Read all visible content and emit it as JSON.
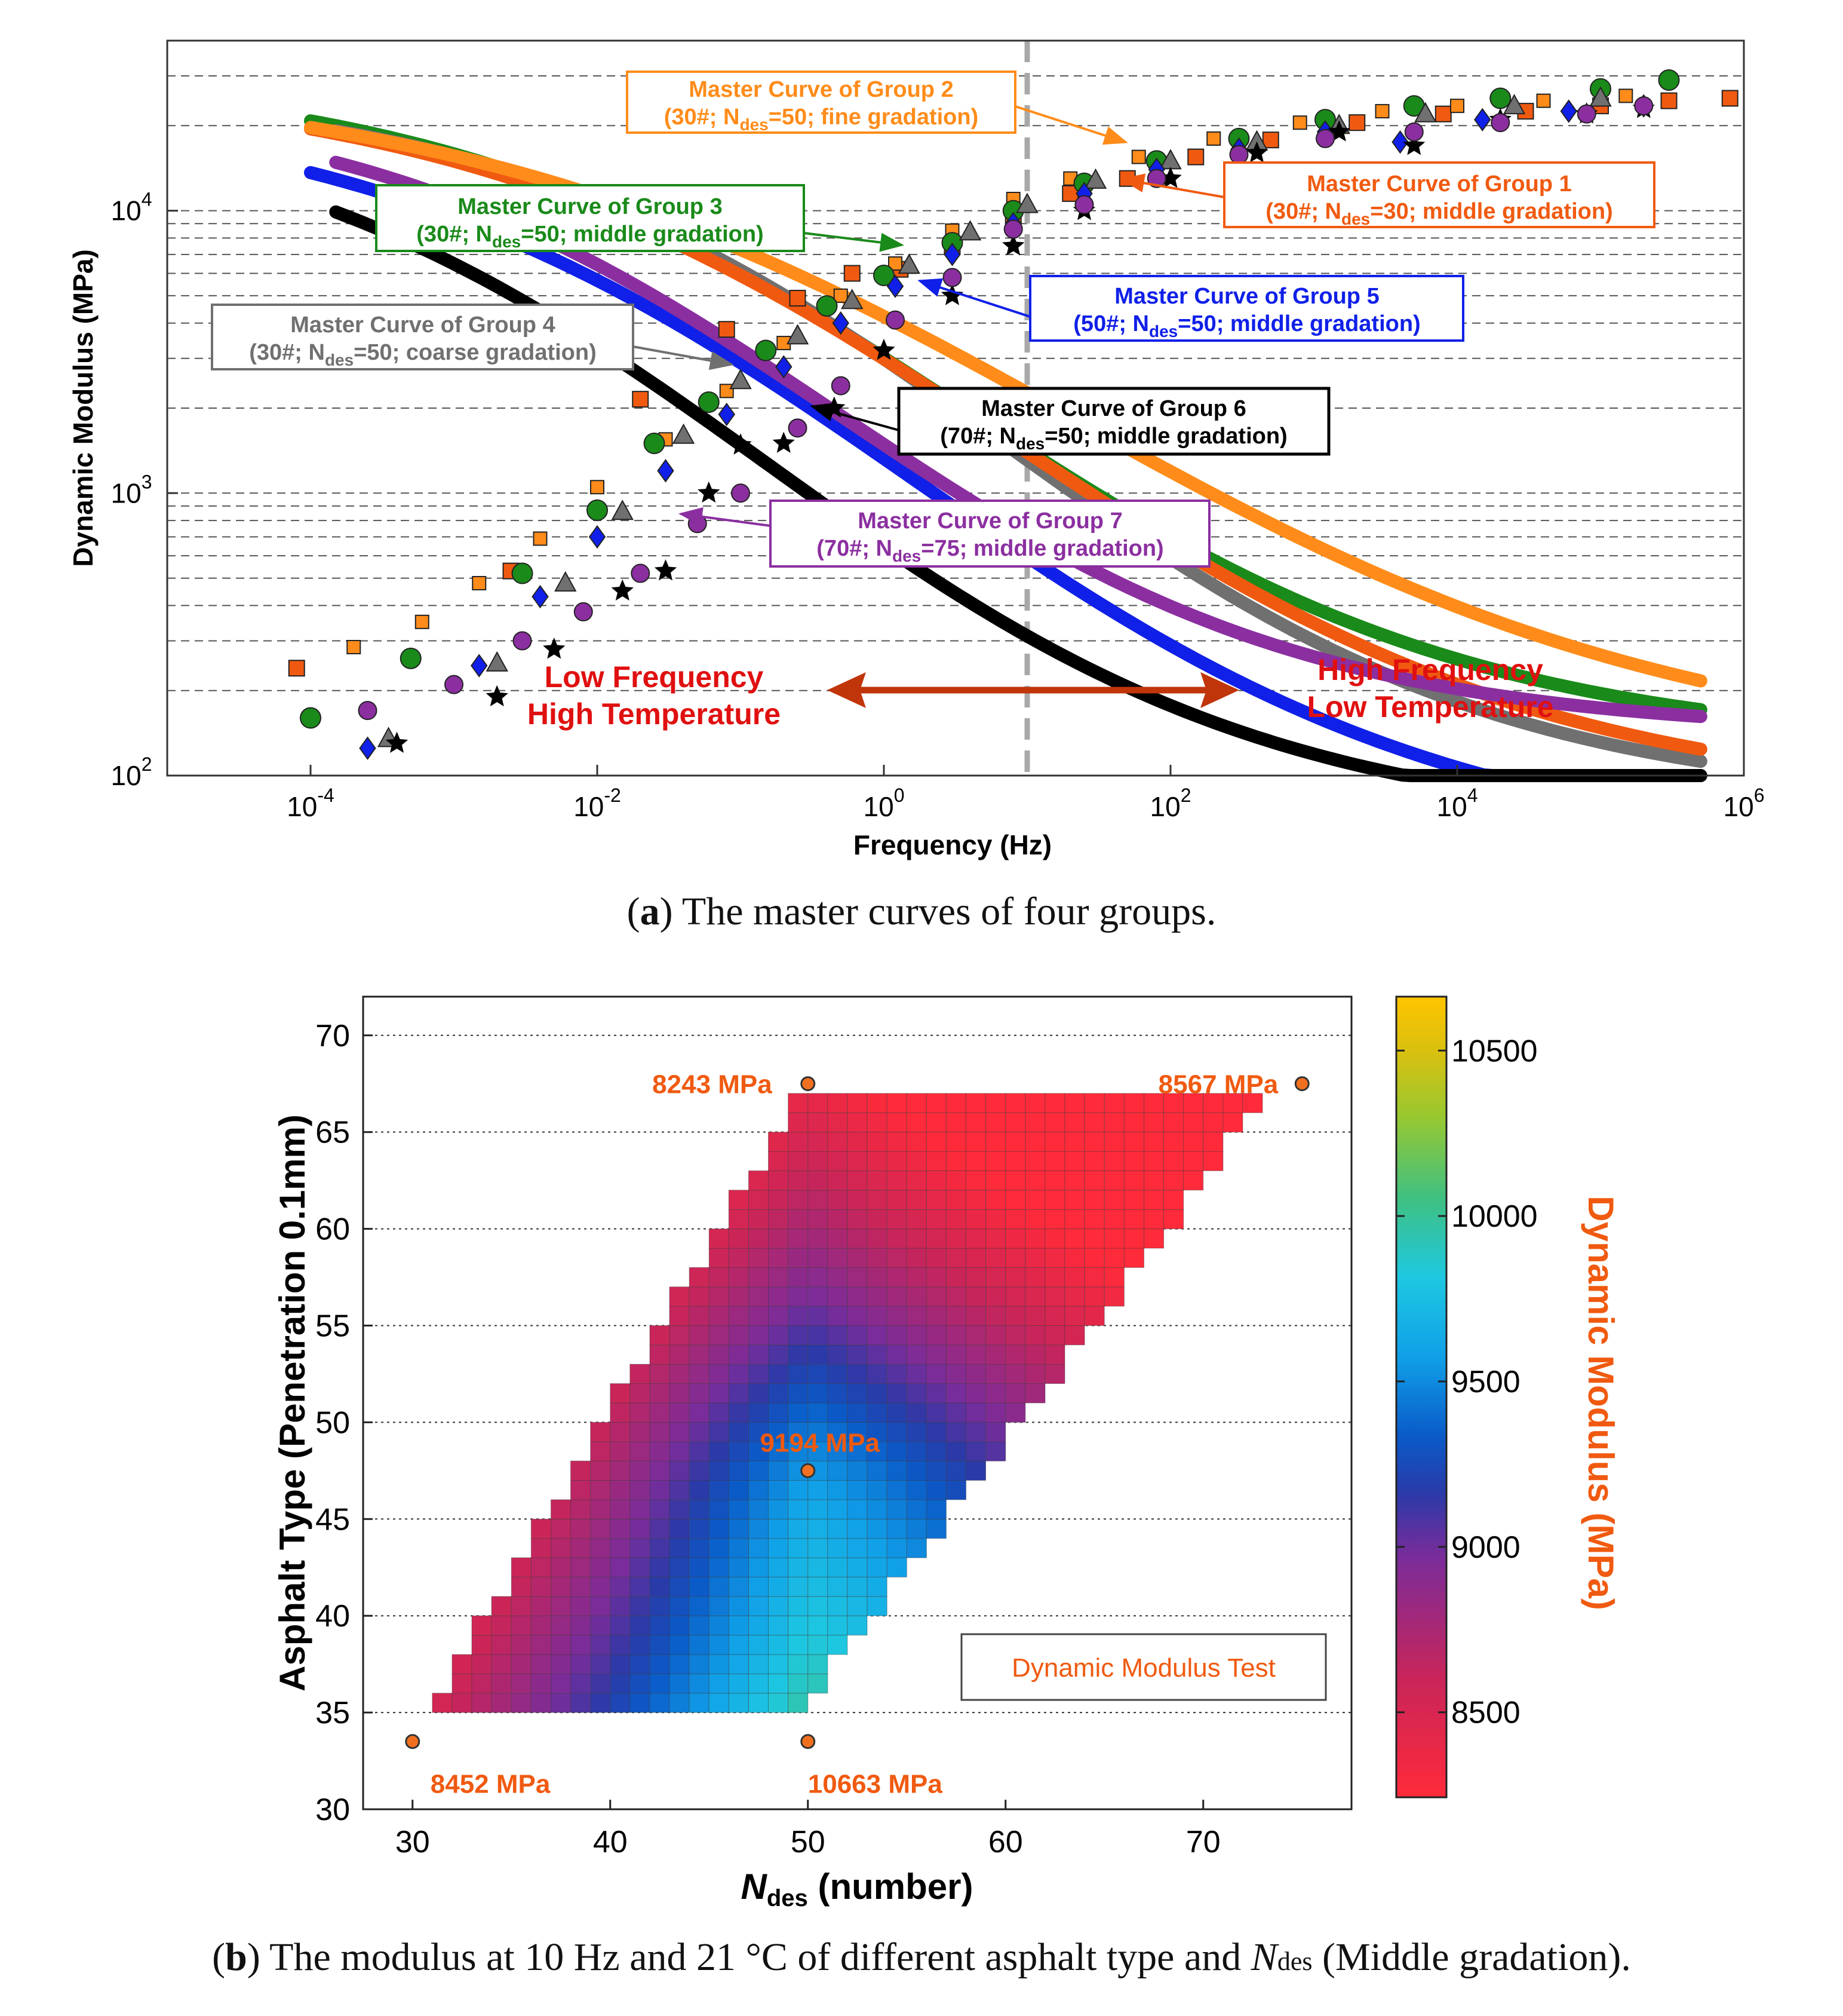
{
  "colors": {
    "g1": "#f05a10",
    "g2": "#ff8c1a",
    "g3": "#1a8a1a",
    "g4": "#707070",
    "g5": "#1020e8",
    "g6": "#000000",
    "g7": "#8b2fa0",
    "red_text": "#e01010",
    "arrow": "#c0350a",
    "annot": "#f05a10"
  },
  "captions": {
    "a_letter": "a",
    "a_text": " The master curves of four groups.",
    "b_letter": "b",
    "b_text_1": " The modulus at 10 Hz and 21 °C of different asphalt type and ",
    "b_n": "N",
    "b_sub": "des",
    "b_text_2": " (Middle gradation)."
  },
  "chart_data": [
    {
      "type": "line",
      "title": "",
      "xlabel": "Frequency (Hz)",
      "ylabel": "Dynamic Modulus (MPa)",
      "xscale": "log",
      "yscale": "log",
      "xlim": [
        1e-05,
        1000000
      ],
      "ylim": [
        100,
        40000
      ],
      "xtick_values": [
        0.0001,
        0.01,
        1,
        100,
        10000,
        1000000
      ],
      "xticks": [
        {
          "base": "10",
          "exp": "-4"
        },
        {
          "base": "10",
          "exp": "-2"
        },
        {
          "base": "10",
          "exp": "0"
        },
        {
          "base": "10",
          "exp": "2"
        },
        {
          "base": "10",
          "exp": "4"
        },
        {
          "base": "10",
          "exp": "6"
        }
      ],
      "ytick_values": [
        100,
        1000,
        10000
      ],
      "yticks": [
        {
          "base": "10",
          "exp": "2"
        },
        {
          "base": "10",
          "exp": "3"
        },
        {
          "base": "10",
          "exp": "4"
        }
      ],
      "grid_y": [
        200,
        300,
        400,
        500,
        600,
        700,
        800,
        900,
        1000,
        2000,
        3000,
        4000,
        5000,
        6000,
        7000,
        8000,
        9000,
        10000,
        20000,
        30000
      ],
      "reference_line": {
        "x": 10,
        "style": "dashed"
      },
      "region_labels": {
        "low": [
          "Low Frequency",
          "High Temperature"
        ],
        "high": [
          "High Frequency",
          "Low Temperature"
        ]
      },
      "series": [
        {
          "id": "g1",
          "label": [
            "Master Curve of Group 1",
            "(30#; N",
            "des",
            "=30; middle gradation)"
          ],
          "sigmoid": {
            "d": 1.9,
            "a": 2.58,
            "b": -0.45,
            "g": 0.52
          },
          "xrange": [
            0.0001,
            500000
          ],
          "marker": "square",
          "points": [
            [
              8e-05,
              240
            ],
            [
              0.0025,
              530
            ],
            [
              0.02,
              2150
            ],
            [
              0.08,
              3800
            ],
            [
              0.25,
              4900
            ],
            [
              0.6,
              6000
            ],
            [
              1.3,
              6200
            ],
            [
              3,
              7500
            ],
            [
              8,
              9500
            ],
            [
              20,
              11500
            ],
            [
              50,
              13000
            ],
            [
              150,
              15500
            ],
            [
              500,
              17800
            ],
            [
              2000,
              20500
            ],
            [
              8000,
              22000
            ],
            [
              30000,
              22500
            ],
            [
              100000,
              23500
            ],
            [
              300000,
              24500
            ],
            [
              800000,
              25000
            ]
          ]
        },
        {
          "id": "g2",
          "label": [
            "Master Curve of Group 2",
            "(30#; N",
            "des",
            "=50; fine gradation)"
          ],
          "sigmoid": {
            "d": 2.05,
            "a": 2.44,
            "b": -0.6,
            "g": 0.46
          },
          "xrange": [
            0.0001,
            500000
          ],
          "marker": "square-small",
          "points": [
            [
              0.0002,
              285
            ],
            [
              0.0006,
              350
            ],
            [
              0.0015,
              480
            ],
            [
              0.004,
              690
            ],
            [
              0.01,
              1050
            ],
            [
              0.03,
              1550
            ],
            [
              0.08,
              2300
            ],
            [
              0.2,
              3400
            ],
            [
              0.5,
              5000
            ],
            [
              1.2,
              6500
            ],
            [
              3,
              8500
            ],
            [
              8,
              11000
            ],
            [
              20,
              13000
            ],
            [
              60,
              15500
            ],
            [
              200,
              18000
            ],
            [
              800,
              20500
            ],
            [
              3000,
              22500
            ],
            [
              10000,
              23500
            ],
            [
              40000,
              24500
            ],
            [
              150000,
              25500
            ]
          ]
        },
        {
          "id": "g3",
          "label": [
            "Master Curve of Group 3",
            "(30#; N",
            "des",
            "=50; middle gradation)"
          ],
          "sigmoid": {
            "d": 2.1,
            "a": 2.4,
            "b": -0.3,
            "g": 0.55
          },
          "xrange": [
            0.0001,
            500000
          ],
          "marker": "circle",
          "points": [
            [
              0.0001,
              160
            ],
            [
              0.0005,
              260
            ],
            [
              0.003,
              520
            ],
            [
              0.01,
              870
            ],
            [
              0.025,
              1500
            ],
            [
              0.06,
              2100
            ],
            [
              0.15,
              3200
            ],
            [
              0.4,
              4600
            ],
            [
              1,
              5900
            ],
            [
              3,
              7700
            ],
            [
              8,
              10000
            ],
            [
              25,
              12500
            ],
            [
              80,
              15000
            ],
            [
              300,
              18000
            ],
            [
              1200,
              21000
            ],
            [
              5000,
              23500
            ],
            [
              20000,
              25000
            ],
            [
              100000,
              27000
            ],
            [
              300000,
              29000
            ]
          ]
        },
        {
          "id": "g4",
          "label": [
            "Master Curve of Group 4",
            "(30#; N",
            "des",
            "=50; coarse gradation)"
          ],
          "sigmoid": {
            "d": 1.9,
            "a": 2.55,
            "b": -0.48,
            "g": 0.57
          },
          "xrange": [
            0.00015,
            500000
          ],
          "marker": "triangle",
          "points": [
            [
              0.00035,
              135
            ],
            [
              0.002,
              250
            ],
            [
              0.006,
              480
            ],
            [
              0.015,
              860
            ],
            [
              0.04,
              1600
            ],
            [
              0.1,
              2500
            ],
            [
              0.25,
              3600
            ],
            [
              0.6,
              4800
            ],
            [
              1.5,
              6400
            ],
            [
              4,
              8400
            ],
            [
              10,
              10500
            ],
            [
              30,
              12800
            ],
            [
              100,
              15000
            ],
            [
              400,
              17500
            ],
            [
              1500,
              20000
            ],
            [
              6000,
              22000
            ],
            [
              25000,
              23500
            ],
            [
              100000,
              25000
            ]
          ]
        },
        {
          "id": "g5",
          "label": [
            "Master Curve of Group 5",
            "(50#; N",
            "des",
            "=50; middle gradation)"
          ],
          "sigmoid": {
            "d": 1.7,
            "a": 2.71,
            "b": -0.1,
            "g": 0.52
          },
          "xrange": [
            0.0001,
            500000
          ],
          "marker": "diamond",
          "points": [
            [
              0.00025,
              125
            ],
            [
              0.0015,
              245
            ],
            [
              0.004,
              430
            ],
            [
              0.01,
              700
            ],
            [
              0.03,
              1200
            ],
            [
              0.08,
              1900
            ],
            [
              0.2,
              2800
            ],
            [
              0.5,
              4000
            ],
            [
              1.2,
              5400
            ],
            [
              3,
              7000
            ],
            [
              8,
              9000
            ],
            [
              25,
              11500
            ],
            [
              80,
              14000
            ],
            [
              300,
              16500
            ],
            [
              1200,
              19000
            ],
            [
              4000,
              17500
            ],
            [
              15000,
              21000
            ],
            [
              60000,
              22500
            ],
            [
              200000,
              23500
            ]
          ]
        },
        {
          "id": "g6",
          "label": [
            "Master Curve of Group 6",
            "(70#; N",
            "des",
            "=50; middle gradation)"
          ],
          "sigmoid": {
            "d": 1.8,
            "a": 2.6,
            "b": 0.45,
            "g": 0.56
          },
          "xrange": [
            0.00015,
            500000
          ],
          "marker": "star",
          "points": [
            [
              0.0004,
              130
            ],
            [
              0.002,
              190
            ],
            [
              0.005,
              280
            ],
            [
              0.015,
              450
            ],
            [
              0.03,
              530
            ],
            [
              0.06,
              1000
            ],
            [
              0.1,
              1480
            ],
            [
              0.2,
              1500
            ],
            [
              0.45,
              2000
            ],
            [
              1,
              3200
            ],
            [
              3,
              5000
            ],
            [
              8,
              7500
            ],
            [
              25,
              10000
            ],
            [
              100,
              13000
            ],
            [
              400,
              16000
            ],
            [
              1500,
              19000
            ],
            [
              5000,
              17000
            ],
            [
              20000,
              21000
            ],
            [
              80000,
              22000
            ],
            [
              200000,
              23000
            ]
          ]
        },
        {
          "id": "g7",
          "label": [
            "Master Curve of Group 7",
            "(70#; N",
            "des",
            "=75; middle gradation)"
          ],
          "sigmoid": {
            "d": 2.15,
            "a": 2.27,
            "b": 0.2,
            "g": 0.6
          },
          "xrange": [
            0.00015,
            500000
          ],
          "marker": "circle-small",
          "points": [
            [
              0.00025,
              170
            ],
            [
              0.001,
              210
            ],
            [
              0.003,
              300
            ],
            [
              0.008,
              380
            ],
            [
              0.02,
              520
            ],
            [
              0.05,
              780
            ],
            [
              0.1,
              1000
            ],
            [
              0.25,
              1700
            ],
            [
              0.5,
              2400
            ],
            [
              1.2,
              4100
            ],
            [
              3,
              5800
            ],
            [
              8,
              8600
            ],
            [
              25,
              10500
            ],
            [
              80,
              13000
            ],
            [
              300,
              15800
            ],
            [
              1200,
              18000
            ],
            [
              5000,
              19000
            ],
            [
              20000,
              20500
            ],
            [
              80000,
              22000
            ],
            [
              200000,
              23500
            ]
          ]
        }
      ]
    },
    {
      "type": "heatmap",
      "xlabel_italic": "N",
      "xlabel_sub": "des",
      "xlabel_rest": " (number)",
      "ylabel": "Asphalt Type (Penetration 0.1mm)",
      "xlim": [
        27.5,
        77.5
      ],
      "ylim": [
        30,
        72
      ],
      "xticks": [
        30,
        40,
        50,
        60,
        70
      ],
      "yticks": [
        30,
        35,
        40,
        45,
        50,
        55,
        60,
        65,
        70
      ],
      "cell_size": {
        "x": 1,
        "y": 1
      },
      "region": {
        "pen_min": 35,
        "pen_max": 67,
        "row_start_at_pen35": 31,
        "row_end_at_pen35": 50,
        "row_start_slope": 0.5926,
        "row_end_slope": 0.7407,
        "row_end_cap": 74
      },
      "colorbar": {
        "min": 8243,
        "max": 10663,
        "ticks": [
          8500,
          9000,
          9500,
          10000,
          10500
        ],
        "label": "Dynamic Modulus (MPa)"
      },
      "legend": "Dynamic Modulus Test",
      "measured_points": [
        {
          "x": 50,
          "y": 67.5,
          "value": 8243,
          "label": "8243 MPa"
        },
        {
          "x": 75,
          "y": 67.5,
          "value": 8567,
          "label": "8567 MPa"
        },
        {
          "x": 50,
          "y": 47.5,
          "value": 9194,
          "label": "9194 MPa"
        },
        {
          "x": 30,
          "y": 33.5,
          "value": 8452,
          "label": "8452 MPa"
        },
        {
          "x": 50,
          "y": 33.5,
          "value": 10663,
          "label": "10663 MPa"
        }
      ]
    }
  ]
}
